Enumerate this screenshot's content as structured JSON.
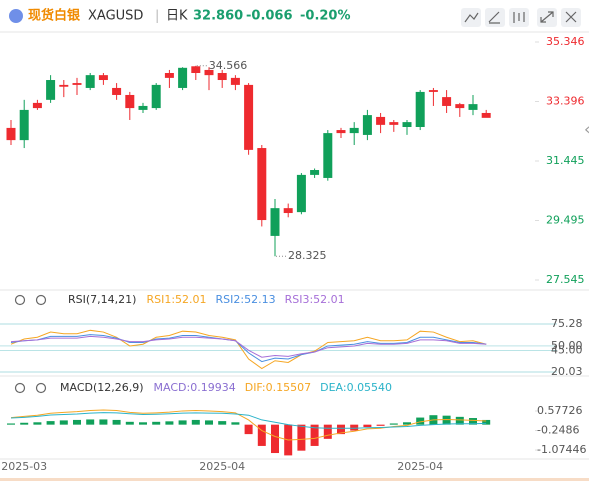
{
  "header": {
    "name": "现货白银",
    "symbol": "XAGUSD",
    "period": "日K",
    "price": "32.860",
    "change": "-0.066",
    "change_pct": "-0.20%"
  },
  "chart_data": [
    {
      "type": "candlestick",
      "up_color": "#10a05a",
      "down_color": "#ee2a2f",
      "categories": [
        null,
        "2025-03",
        null,
        null,
        null,
        null,
        null,
        null,
        null,
        null,
        null,
        null,
        null,
        null,
        null,
        null,
        "2025-04",
        null,
        null,
        null,
        null,
        null,
        null,
        null,
        null,
        null,
        null,
        null,
        null,
        null,
        null,
        "2025-04",
        null,
        null,
        null,
        null,
        null
      ],
      "open": [
        32.53,
        32.13,
        33.35,
        33.45,
        33.94,
        34.0,
        33.84,
        34.26,
        33.84,
        33.61,
        33.12,
        33.18,
        34.33,
        33.84,
        34.55,
        34.43,
        34.33,
        34.17,
        33.94,
        31.87,
        28.99,
        29.9,
        29.77,
        30.99,
        30.89,
        32.46,
        32.36,
        32.3,
        32.89,
        32.72,
        32.56,
        32.56,
        33.77,
        33.54,
        33.31,
        33.12,
        33.02
      ],
      "high": [
        32.79,
        33.45,
        33.45,
        34.26,
        34.1,
        34.17,
        34.33,
        34.33,
        34.0,
        33.71,
        33.35,
        34.0,
        34.43,
        34.52,
        34.566,
        34.52,
        34.43,
        34.26,
        34.0,
        31.97,
        30.2,
        30.05,
        31.05,
        31.2,
        32.46,
        32.53,
        32.72,
        33.12,
        33.02,
        32.79,
        32.79,
        33.77,
        33.84,
        33.77,
        33.35,
        33.61,
        33.12
      ],
      "low": [
        31.97,
        31.87,
        33.12,
        33.35,
        33.54,
        33.61,
        33.77,
        33.94,
        33.45,
        32.79,
        33.02,
        33.12,
        33.84,
        33.77,
        34.1,
        33.77,
        33.84,
        33.77,
        31.65,
        29.3,
        28.325,
        29.6,
        29.7,
        30.89,
        30.8,
        32.2,
        31.97,
        32.13,
        32.36,
        32.4,
        32.3,
        32.46,
        33.25,
        33.02,
        32.89,
        32.95,
        32.89
      ],
      "close": [
        32.13,
        33.12,
        33.18,
        34.1,
        33.88,
        33.94,
        34.26,
        34.1,
        33.61,
        33.18,
        33.25,
        33.94,
        34.17,
        34.5,
        34.33,
        34.26,
        34.1,
        33.94,
        31.81,
        29.51,
        29.9,
        29.74,
        30.99,
        31.15,
        32.36,
        32.36,
        32.53,
        32.95,
        32.63,
        32.63,
        32.72,
        33.71,
        33.71,
        33.25,
        33.18,
        33.31,
        32.86
      ],
      "ylim": [
        27.217,
        35.674
      ],
      "yticks": [
        35.346,
        33.396,
        31.445,
        29.495,
        27.545
      ],
      "annotations": [
        {
          "index": 14,
          "value": 34.566
        },
        {
          "index": 20,
          "value": 28.325
        }
      ]
    },
    {
      "type": "line",
      "title": "RSI(7,14,21)",
      "ylim": [
        8.5,
        96
      ],
      "yticks": [
        75.28,
        {
          "value": 50,
          "label": "50.00"
        },
        {
          "value": 45,
          "label": "45.00"
        },
        20.03
      ],
      "series": [
        {
          "name": "RSI1:52.01",
          "color": "#f5a623",
          "values": [
            52,
            58,
            60,
            66,
            64,
            64,
            68,
            66,
            60,
            50,
            52,
            60,
            62,
            67,
            66,
            62,
            60,
            57,
            35,
            24,
            33,
            31,
            40,
            44,
            54,
            55,
            56,
            60,
            56,
            56,
            57,
            67,
            66,
            60,
            55,
            56,
            52.01
          ]
        },
        {
          "name": "RSI2:52.13",
          "color": "#4a8fe0",
          "values": [
            54,
            56,
            57,
            61,
            61,
            61,
            63,
            62,
            59,
            54,
            54,
            58,
            59,
            62,
            62,
            60,
            58,
            56,
            42,
            32,
            36,
            35,
            40,
            43,
            50,
            51,
            52,
            55,
            53,
            53,
            54,
            60,
            60,
            57,
            54,
            54,
            52.13
          ]
        },
        {
          "name": "RSI3:52.01",
          "color": "#a66fd8",
          "values": [
            55,
            56,
            57,
            59,
            59,
            59,
            61,
            60,
            58,
            55,
            55,
            57,
            58,
            60,
            60,
            59,
            58,
            56,
            45,
            37,
            39,
            38,
            41,
            43,
            48,
            49,
            50,
            53,
            52,
            52,
            53,
            57,
            57,
            56,
            53,
            53,
            52.01
          ]
        }
      ]
    },
    {
      "type": "macd",
      "title": "MACD(12,26,9)",
      "ylim": [
        -1.41,
        1.55
      ],
      "yticks": [
        0.57726,
        -0.2486,
        -1.07446
      ],
      "up_color": "#10a05a",
      "down_color": "#ee2a2f",
      "series": [
        {
          "name": "MACD:0.19934",
          "color": "#8a6fd1",
          "values": [
            0.05,
            0.08,
            0.1,
            0.15,
            0.18,
            0.2,
            0.22,
            0.22,
            0.2,
            0.12,
            0.1,
            0.12,
            0.14,
            0.18,
            0.2,
            0.18,
            0.15,
            0.1,
            -0.4,
            -0.9,
            -1.2,
            -1.3,
            -1.1,
            -0.9,
            -0.6,
            -0.4,
            -0.25,
            -0.1,
            -0.05,
            0.05,
            0.1,
            0.3,
            0.4,
            0.38,
            0.33,
            0.28,
            0.19934
          ]
        },
        {
          "name": "DIF:0.15507",
          "color": "#f5a623",
          "values": [
            0.3,
            0.35,
            0.4,
            0.48,
            0.52,
            0.55,
            0.6,
            0.62,
            0.6,
            0.52,
            0.48,
            0.5,
            0.53,
            0.58,
            0.6,
            0.58,
            0.55,
            0.5,
            0.2,
            -0.25,
            -0.5,
            -0.65,
            -0.62,
            -0.58,
            -0.45,
            -0.35,
            -0.28,
            -0.18,
            -0.15,
            -0.08,
            -0.03,
            0.12,
            0.2,
            0.22,
            0.2,
            0.18,
            0.15507
          ]
        },
        {
          "name": "DEA:0.05540",
          "color": "#2bb3c9",
          "values": [
            0.28,
            0.31,
            0.35,
            0.41,
            0.43,
            0.45,
            0.49,
            0.51,
            0.5,
            0.46,
            0.43,
            0.44,
            0.46,
            0.49,
            0.5,
            0.49,
            0.48,
            0.45,
            0.4,
            0.2,
            0.1,
            0,
            -0.07,
            -0.13,
            -0.15,
            -0.15,
            -0.15,
            -0.13,
            -0.12,
            -0.1,
            -0.08,
            -0.03,
            0,
            0.03,
            0.04,
            0.04,
            0.0554
          ]
        }
      ]
    }
  ]
}
